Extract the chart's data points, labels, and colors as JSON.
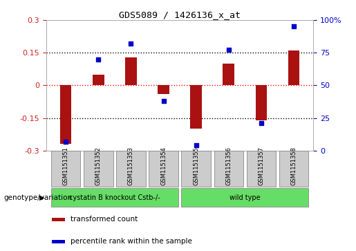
{
  "title": "GDS5089 / 1426136_x_at",
  "samples": [
    "GSM1151351",
    "GSM1151352",
    "GSM1151353",
    "GSM1151354",
    "GSM1151355",
    "GSM1151356",
    "GSM1151357",
    "GSM1151358"
  ],
  "transformed_count": [
    -0.27,
    0.05,
    0.13,
    -0.04,
    -0.2,
    0.1,
    -0.16,
    0.16
  ],
  "percentile_rank": [
    7,
    70,
    82,
    38,
    4,
    77,
    21,
    95
  ],
  "groups": [
    {
      "label": "cystatin B knockout Cstb-/-",
      "start": 0,
      "end": 3,
      "color": "#66DD66"
    },
    {
      "label": "wild type",
      "start": 4,
      "end": 7,
      "color": "#66DD66"
    }
  ],
  "bar_color": "#AA1111",
  "dot_color": "#0000CC",
  "ylim_left": [
    -0.3,
    0.3
  ],
  "ylim_right": [
    0,
    100
  ],
  "yticks_left": [
    -0.3,
    -0.15,
    0,
    0.15,
    0.3
  ],
  "yticks_right": [
    0,
    25,
    50,
    75,
    100
  ],
  "left_tick_color": "#CC2222",
  "right_tick_color": "#0000CC",
  "genotype_label": "genotype/variation",
  "legend_items": [
    {
      "label": "transformed count",
      "color": "#AA1111"
    },
    {
      "label": "percentile rank within the sample",
      "color": "#0000CC"
    }
  ],
  "bar_width": 0.35,
  "background_color": "#ffffff",
  "plot_bg_color": "#ffffff",
  "sample_box_color": "#cccccc"
}
